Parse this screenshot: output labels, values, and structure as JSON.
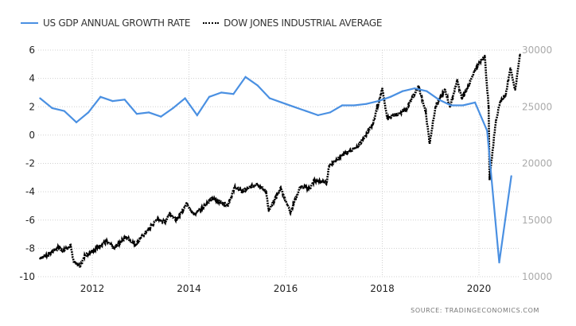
{
  "legend": [
    {
      "label": "US GDP ANNUAL GROWTH RATE",
      "style": "line",
      "color": "#4a90e2"
    },
    {
      "label": "DOW JONES INDUSTRIAL AVERAGE",
      "style": "dotted",
      "color": "#000000"
    }
  ],
  "source_label": "SOURCE:  TRADINGECONOMICS.COM",
  "chart_data": {
    "type": "line",
    "title": "",
    "xlabel": "",
    "ylabel": "",
    "x_range": [
      2010.8,
      2021.0
    ],
    "x_ticks": [
      2012,
      2014,
      2016,
      2018,
      2020
    ],
    "y_left": {
      "range": [
        -10,
        6
      ],
      "ticks": [
        -10,
        -8,
        -6,
        -4,
        -2,
        0,
        2,
        4,
        6
      ]
    },
    "y_right": {
      "range": [
        10000,
        30000
      ],
      "ticks": [
        10000,
        15000,
        20000,
        25000,
        30000
      ]
    },
    "grid": true,
    "legend_position": "top-left",
    "series": [
      {
        "name": "US GDP ANNUAL GROWTH RATE",
        "axis": "left",
        "color": "#4a90e2",
        "x": [
          2010.92,
          2011.17,
          2011.42,
          2011.67,
          2011.92,
          2012.17,
          2012.42,
          2012.67,
          2012.92,
          2013.17,
          2013.42,
          2013.67,
          2013.92,
          2014.17,
          2014.42,
          2014.67,
          2014.92,
          2015.17,
          2015.42,
          2015.67,
          2015.92,
          2016.17,
          2016.42,
          2016.67,
          2016.92,
          2017.17,
          2017.42,
          2017.67,
          2017.92,
          2018.17,
          2018.42,
          2018.67,
          2018.92,
          2019.17,
          2019.42,
          2019.67,
          2019.92,
          2020.17,
          2020.42,
          2020.67
        ],
        "values": [
          2.6,
          1.9,
          1.7,
          0.9,
          1.6,
          2.7,
          2.4,
          2.5,
          1.5,
          1.6,
          1.3,
          1.9,
          2.6,
          1.4,
          2.7,
          3.0,
          2.9,
          4.1,
          3.5,
          2.6,
          2.3,
          2.0,
          1.7,
          1.4,
          1.6,
          2.1,
          2.1,
          2.2,
          2.4,
          2.7,
          3.1,
          3.3,
          3.1,
          2.5,
          2.1,
          2.1,
          2.3,
          0.3,
          -9.0,
          -2.9
        ]
      },
      {
        "name": "DOW JONES INDUSTRIAL AVERAGE",
        "axis": "right",
        "color": "#000000",
        "x": [
          2010.92,
          2011.1,
          2011.3,
          2011.4,
          2011.55,
          2011.62,
          2011.75,
          2011.85,
          2012.0,
          2012.3,
          2012.45,
          2012.7,
          2012.9,
          2013.0,
          2013.35,
          2013.5,
          2013.6,
          2013.75,
          2013.95,
          2014.1,
          2014.5,
          2014.8,
          2014.95,
          2015.1,
          2015.4,
          2015.6,
          2015.65,
          2015.9,
          2016.1,
          2016.3,
          2016.5,
          2016.6,
          2016.85,
          2016.9,
          2017.2,
          2017.5,
          2017.8,
          2018.0,
          2018.1,
          2018.3,
          2018.5,
          2018.75,
          2018.9,
          2018.98,
          2019.1,
          2019.3,
          2019.4,
          2019.55,
          2019.65,
          2019.8,
          2019.95,
          2020.12,
          2020.2,
          2020.22,
          2020.35,
          2020.45,
          2020.55,
          2020.65,
          2020.75,
          2020.85
        ],
        "values": [
          11600,
          12000,
          12600,
          12300,
          12700,
          11300,
          10900,
          11900,
          12300,
          13100,
          12500,
          13500,
          12800,
          13400,
          15100,
          14800,
          15600,
          15000,
          16500,
          15500,
          16900,
          16300,
          17900,
          17500,
          18200,
          17500,
          15800,
          17800,
          15700,
          17900,
          17800,
          18500,
          18300,
          19800,
          20800,
          21500,
          23400,
          26600,
          24000,
          24300,
          24800,
          26800,
          24500,
          21800,
          25000,
          26500,
          25000,
          27300,
          25700,
          27000,
          28500,
          29500,
          25000,
          18600,
          23800,
          25500,
          26000,
          28400,
          26500,
          29600
        ]
      }
    ]
  }
}
